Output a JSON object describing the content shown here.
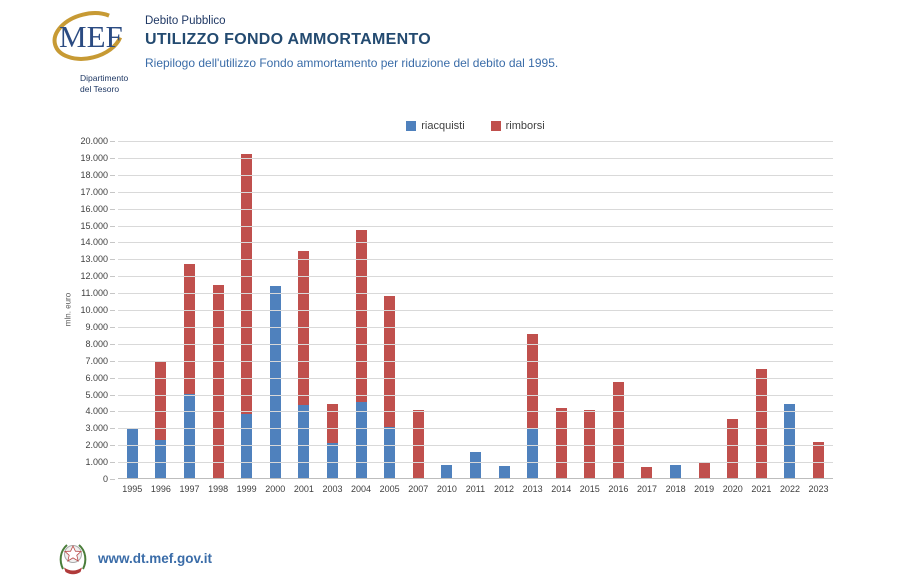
{
  "header": {
    "logo": {
      "acronym": "MEF",
      "department_line1": "Dipartimento",
      "department_line2": "del Tesoro"
    },
    "kicker": "Debito Pubblico",
    "title": "UTILIZZO FONDO AMMORTAMENTO",
    "subtitle": "Riepilogo dell'utilizzo Fondo ammortamento per riduzione del debito dal 1995."
  },
  "chart_data": {
    "type": "bar",
    "stacked": true,
    "title": "",
    "ylabel": "mln. euro",
    "ylim": [
      0,
      20000
    ],
    "ytick_step": 1000,
    "grid": true,
    "legend_position": "top",
    "yticks": [
      "20.000",
      "19.000",
      "18.000",
      "17.000",
      "16.000",
      "15.000",
      "14.000",
      "13.000",
      "12.000",
      "11.000",
      "10.000",
      "9.000",
      "8.000",
      "7.000",
      "6.000",
      "5.000",
      "4.000",
      "3.000",
      "2.000",
      "1.000",
      "0"
    ],
    "categories": [
      "1995",
      "1996",
      "1997",
      "1998",
      "1999",
      "2000",
      "2001",
      "2003",
      "2004",
      "2005",
      "2007",
      "2010",
      "2011",
      "2012",
      "2013",
      "2014",
      "2015",
      "2016",
      "2017",
      "2018",
      "2019",
      "2020",
      "2021",
      "2022",
      "2023"
    ],
    "series": [
      {
        "name": "riacquisti",
        "color": "#4F81BD",
        "values": [
          2900,
          2250,
          4950,
          0,
          3800,
          11350,
          4300,
          2100,
          4500,
          3000,
          0,
          770,
          1520,
          730,
          2950,
          0,
          0,
          0,
          0,
          750,
          0,
          0,
          0,
          4400,
          0
        ]
      },
      {
        "name": "rimborsi",
        "color": "#C0504D",
        "values": [
          0,
          4650,
          7700,
          11400,
          15400,
          0,
          9150,
          2300,
          10200,
          7800,
          4050,
          0,
          0,
          0,
          5550,
          4150,
          4000,
          5700,
          650,
          0,
          900,
          3500,
          6450,
          0,
          2150
        ]
      }
    ]
  },
  "footer": {
    "url": "www.dt.mef.gov.it",
    "emblem_icon": "italy-emblem-icon"
  },
  "colors": {
    "bar_blue": "#4F81BD",
    "bar_red": "#C0504D",
    "gridline": "#D9D9D9",
    "header_navy": "#1F3864",
    "title_navy": "#234A70",
    "subtitle_blue": "#3A6CA8",
    "logo_gold": "#C79A34"
  }
}
